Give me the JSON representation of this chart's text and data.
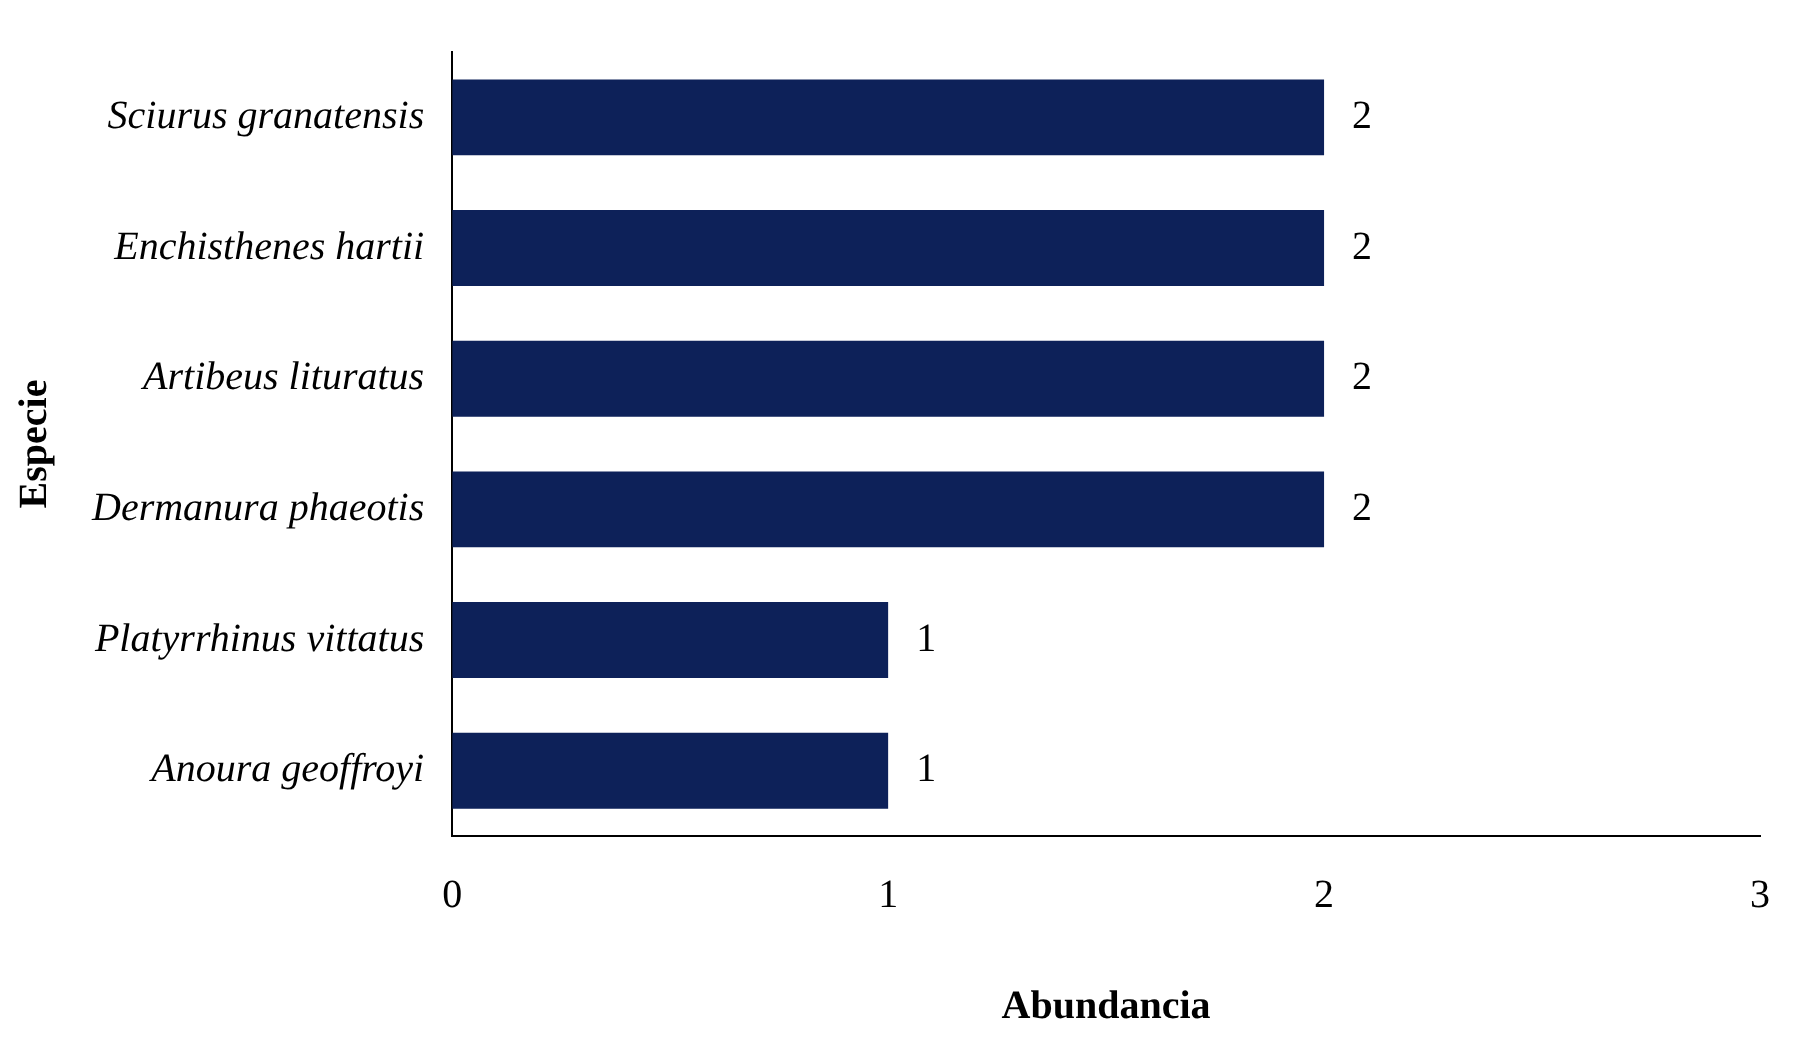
{
  "chart_data": {
    "type": "bar",
    "orientation": "horizontal",
    "xlabel": "Abundancia",
    "ylabel": "Especie",
    "categories": [
      "Sciurus granatensis",
      "Enchisthenes hartii",
      "Artibeus lituratus",
      "Dermanura phaeotis",
      "Platyrrhinus vittatus",
      "Anoura geoffroyi"
    ],
    "values": [
      2,
      2,
      2,
      2,
      1,
      1
    ],
    "color": "#0d2159",
    "xlim": [
      0,
      3
    ],
    "xticks": [
      0,
      1,
      2,
      3
    ],
    "grid": false,
    "legend": false,
    "data_labels": true
  }
}
